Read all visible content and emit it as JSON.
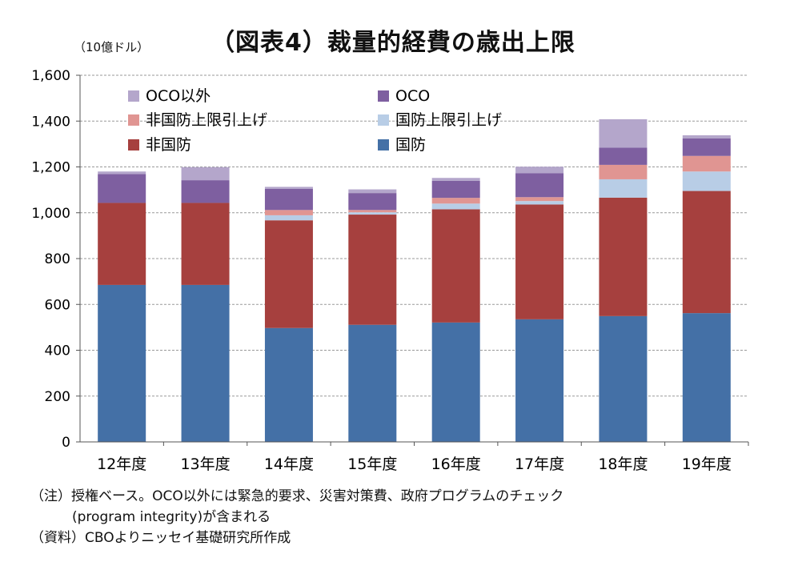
{
  "title": "（図表4）裁量的経費の歳出上限",
  "unit_label": "（10億ドル）",
  "notes": {
    "note_line1": "（注）授権ベース。OCO以外には緊急的要求、災害対策費、政府プログラムのチェック",
    "note_line2": "(program integrity)が含まれる",
    "source": "（資料）CBOよりニッセイ基礎研究所作成"
  },
  "chart_data": {
    "type": "bar",
    "stacked": true,
    "categories": [
      "12年度",
      "13年度",
      "14年度",
      "15年度",
      "16年度",
      "17年度",
      "18年度",
      "19年度"
    ],
    "ylim": [
      0,
      1600
    ],
    "yticks": [
      0,
      200,
      400,
      600,
      800,
      1000,
      1200,
      1400,
      1600
    ],
    "ytick_labels": [
      "0",
      "200",
      "400",
      "600",
      "800",
      "1,000",
      "1,200",
      "1,400",
      "1,600"
    ],
    "grid": true,
    "series": [
      {
        "name": "国防",
        "color": "#4470a6",
        "values": [
          685,
          685,
          497,
          511,
          521,
          535,
          549,
          562
        ]
      },
      {
        "name": "非国防",
        "color": "#a6403e",
        "values": [
          358,
          358,
          470,
          481,
          494,
          501,
          517,
          533
        ]
      },
      {
        "name": "国防上限引上げ",
        "color": "#b8cde6",
        "values": [
          0,
          0,
          22,
          10,
          25,
          15,
          80,
          85
        ]
      },
      {
        "name": "非国防上限引上げ",
        "color": "#e09592",
        "values": [
          0,
          0,
          23,
          10,
          25,
          17,
          63,
          68
        ]
      },
      {
        "name": "OCO",
        "color": "#7e5fa0",
        "values": [
          126,
          99,
          92,
          74,
          74,
          105,
          75,
          76
        ]
      },
      {
        "name": "OCO以外",
        "color": "#b4a6cb",
        "values": [
          11,
          57,
          9,
          16,
          13,
          28,
          124,
          14
        ]
      }
    ],
    "legend": [
      {
        "name": "OCO以外",
        "color": "#b4a6cb"
      },
      {
        "name": "OCO",
        "color": "#7e5fa0"
      },
      {
        "name": "非国防上限引上げ",
        "color": "#e09592"
      },
      {
        "name": "国防上限引上げ",
        "color": "#b8cde6"
      },
      {
        "name": "非国防",
        "color": "#a6403e"
      },
      {
        "name": "国防",
        "color": "#4470a6"
      }
    ],
    "legend_position": "top-left"
  }
}
